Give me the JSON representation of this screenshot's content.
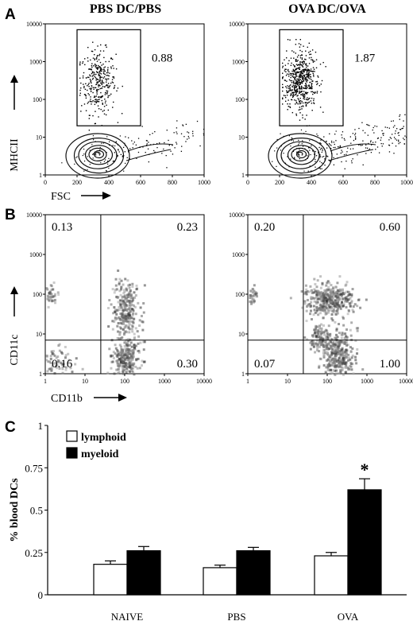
{
  "panel_labels": [
    "A",
    "B",
    "C"
  ],
  "chart_data": [
    {
      "type": "scatter",
      "title": "PBS DC/PBS",
      "xlabel": "FSC",
      "ylabel": "MHCII",
      "xlim": [
        0,
        1000
      ],
      "ylim_log": [
        1,
        10000
      ],
      "x_ticks": [
        "0",
        "200",
        "400",
        "600",
        "800",
        "1000"
      ],
      "y_ticks": [
        "1",
        "10",
        "100",
        "1000",
        "10000"
      ],
      "gate": {
        "value": "0.88",
        "x_range": [
          200,
          600
        ],
        "y_range": [
          20,
          7000
        ]
      }
    },
    {
      "type": "scatter",
      "title": "OVA DC/OVA",
      "xlabel": "",
      "ylabel": "",
      "xlim": [
        0,
        1000
      ],
      "ylim_log": [
        1,
        10000
      ],
      "x_ticks": [
        "0",
        "200",
        "400",
        "600",
        "800",
        "1000"
      ],
      "y_ticks": [
        "1",
        "10",
        "100",
        "1000",
        "10000"
      ],
      "gate": {
        "value": "1.87",
        "x_range": [
          200,
          600
        ],
        "y_range": [
          20,
          7000
        ]
      }
    },
    {
      "type": "heatmap",
      "xlabel": "CD11b",
      "ylabel": "CD11c",
      "xlim_log": [
        1,
        10000
      ],
      "ylim_log": [
        1,
        10000
      ],
      "x_ticks": [
        "1",
        "10",
        "100",
        "1000",
        "10000"
      ],
      "y_ticks": [
        "1",
        "10",
        "100",
        "1000",
        "10000"
      ],
      "quadrant_divider": {
        "x": 25,
        "y": 7
      },
      "quadrants": {
        "upper_left": "0.13",
        "upper_right": "0.23",
        "lower_left": "0.16",
        "lower_right": "0.30"
      }
    },
    {
      "type": "heatmap",
      "xlabel": "",
      "ylabel": "",
      "xlim_log": [
        1,
        10000
      ],
      "ylim_log": [
        1,
        10000
      ],
      "x_ticks": [
        "1",
        "10",
        "100",
        "1000",
        "10000"
      ],
      "y_ticks": [
        "1",
        "10",
        "100",
        "1000",
        "10000"
      ],
      "quadrant_divider": {
        "x": 25,
        "y": 7
      },
      "quadrants": {
        "upper_left": "0.20",
        "upper_right": "0.60",
        "lower_left": "0.07",
        "lower_right": "1.00"
      }
    },
    {
      "type": "bar",
      "ylabel": "% blood DCs",
      "ylim": [
        0,
        1
      ],
      "y_ticks": [
        "0",
        "0.25",
        "0.5",
        "0.75",
        "1"
      ],
      "categories": [
        "NAIVE",
        "PBS",
        "OVA"
      ],
      "series": [
        {
          "name": "lymphoid",
          "values": [
            0.18,
            0.16,
            0.23
          ],
          "errors": [
            0.02,
            0.015,
            0.02
          ],
          "color": "#ffffff"
        },
        {
          "name": "myeloid",
          "values": [
            0.26,
            0.26,
            0.62
          ],
          "errors": [
            0.025,
            0.02,
            0.065
          ],
          "color": "#000000"
        }
      ],
      "annotations": [
        {
          "category": "OVA",
          "series": "myeloid",
          "text": "*"
        }
      ]
    }
  ]
}
